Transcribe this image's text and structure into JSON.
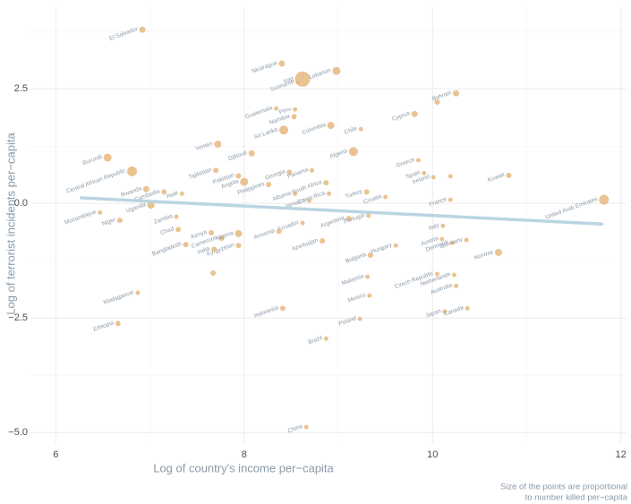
{
  "chart_data": {
    "type": "scatter",
    "x_label": "Log of country's income per−capita",
    "y_label": "Log of terrorist incidents per−capita",
    "caption": [
      "Size of the points are proportional",
      "to number killed per−capita"
    ],
    "color": "#e6b87f",
    "trend_color": "#b3d0de",
    "grid": true,
    "xlim": [
      5.74,
      12.06
    ],
    "ylim": [
      -5.23,
      4.28
    ],
    "xticks": [
      6,
      8,
      10,
      12
    ],
    "yticks": [
      {
        "value": -5,
        "label": "−5.0"
      },
      {
        "value": -2.5,
        "label": "−2.5"
      },
      {
        "value": 0,
        "label": "0.0"
      },
      2.5
    ],
    "xminor": [
      7,
      9,
      11
    ],
    "yminor": [
      -3.75,
      -1.25,
      1.25,
      3.75
    ],
    "trend": {
      "x": [
        6.27,
        11.8
      ],
      "y": [
        0.12,
        -0.45
      ]
    },
    "labels": [
      "El Salvador",
      "Nicaragua",
      "Iraq",
      "Suriname",
      "Lebanon",
      "Bahrain",
      "Cyprus",
      "Guatemala",
      "Peru",
      "Namibia",
      "Sri Lanka",
      "Colombia",
      "Chile",
      "Yemen",
      "Djibouti",
      "Burundi",
      "Greece",
      "Algeria",
      "Tajikistan",
      "Central African Republic",
      "Pakistan",
      "Angola",
      "Georgia",
      "Panama",
      "Spain",
      "Kuwait",
      "Ireland",
      "Rwanda",
      "Cambodia",
      "Haiti",
      "Philippines",
      "Albania",
      "South Africa",
      "Turkey",
      "Costa Rica",
      "France",
      "United Arab Emirates",
      "Mozambique",
      "Jamaica",
      "Croatia",
      "Uganda",
      "Ecuador",
      "Argentina",
      "Portugal",
      "Niger",
      "Zambia",
      "Chad",
      "Kenya",
      "Cameroon",
      "Nigeria",
      "Kyrgyzstan",
      "Armenia",
      "Azerbaijan",
      "Italy",
      "Austria",
      "Denmark",
      "Hungary",
      "Bulgaria",
      "Norway",
      "Germany",
      "Bangladesh",
      "India",
      "Malaysia",
      "Czech Republic",
      "Netherlands",
      "Australia",
      "Madagascar",
      "Mexico",
      "Ethiopia",
      "Indonesia",
      "Japan",
      "Canada",
      "Poland",
      "Brazil",
      "China",
      null,
      null,
      null
    ],
    "x": [
      6.92,
      8.4,
      8.62,
      8.57,
      8.98,
      10.25,
      9.81,
      8.34,
      8.54,
      8.53,
      8.42,
      8.92,
      9.24,
      7.72,
      8.08,
      6.55,
      9.85,
      9.16,
      7.7,
      6.81,
      7.94,
      8.0,
      8.48,
      8.72,
      9.91,
      10.81,
      10.01,
      6.96,
      7.15,
      7.34,
      8.26,
      8.54,
      8.87,
      9.3,
      8.9,
      10.19,
      11.82,
      6.47,
      8.69,
      9.5,
      7.01,
      8.62,
      9.11,
      9.32,
      6.68,
      7.28,
      7.3,
      7.65,
      7.76,
      7.94,
      7.94,
      8.37,
      8.83,
      10.11,
      10.1,
      10.21,
      9.61,
      9.34,
      10.7,
      10.36,
      7.38,
      7.68,
      9.31,
      10.05,
      10.23,
      10.25,
      6.87,
      9.33,
      6.66,
      8.41,
      10.13,
      10.37,
      9.23,
      8.87,
      8.66,
      10.05,
      10.19,
      7.67
    ],
    "y": [
      3.79,
      3.05,
      2.71,
      2.64,
      2.89,
      2.4,
      1.95,
      2.07,
      2.05,
      1.89,
      1.6,
      1.7,
      1.62,
      1.29,
      1.09,
      1.0,
      0.94,
      1.13,
      0.72,
      0.7,
      0.6,
      0.47,
      0.68,
      0.72,
      0.66,
      0.61,
      0.57,
      0.31,
      0.25,
      0.21,
      0.41,
      0.21,
      0.45,
      0.25,
      0.21,
      0.08,
      0.08,
      -0.2,
      0.06,
      0.14,
      -0.04,
      -0.43,
      -0.33,
      -0.27,
      -0.37,
      -0.29,
      -0.57,
      -0.64,
      -0.76,
      -0.66,
      -0.92,
      -0.61,
      -0.82,
      -0.49,
      -0.78,
      -0.86,
      -0.92,
      -1.13,
      -1.07,
      -0.8,
      -0.9,
      -1.0,
      -1.6,
      -1.54,
      -1.56,
      -1.8,
      -1.95,
      -2.01,
      -2.62,
      -2.29,
      -2.36,
      -2.29,
      -2.52,
      -2.95,
      -4.88,
      2.21,
      0.59,
      -1.52
    ],
    "sizes": [
      3.5,
      3.5,
      8.5,
      2.5,
      4.5,
      3.5,
      3.5,
      2.5,
      2.5,
      3,
      5,
      4,
      2.5,
      4,
      3.5,
      4.5,
      2.5,
      5,
      3,
      5.5,
      3,
      4.5,
      3,
      2.5,
      2.5,
      3,
      2.5,
      3.5,
      3,
      2.5,
      3,
      2.5,
      3,
      3,
      2.5,
      2.5,
      5.5,
      2.5,
      2.5,
      2.5,
      4,
      2.5,
      3,
      2.5,
      3,
      2.5,
      3,
      3,
      3,
      4,
      3,
      3,
      3,
      2.5,
      2.5,
      2.5,
      2.5,
      3,
      4,
      2.5,
      3,
      3,
      2.5,
      2.5,
      2.5,
      2.5,
      2.5,
      2.5,
      3,
      3,
      2.5,
      2.5,
      2.5,
      2.5,
      2.5,
      3,
      2.5,
      3
    ]
  }
}
